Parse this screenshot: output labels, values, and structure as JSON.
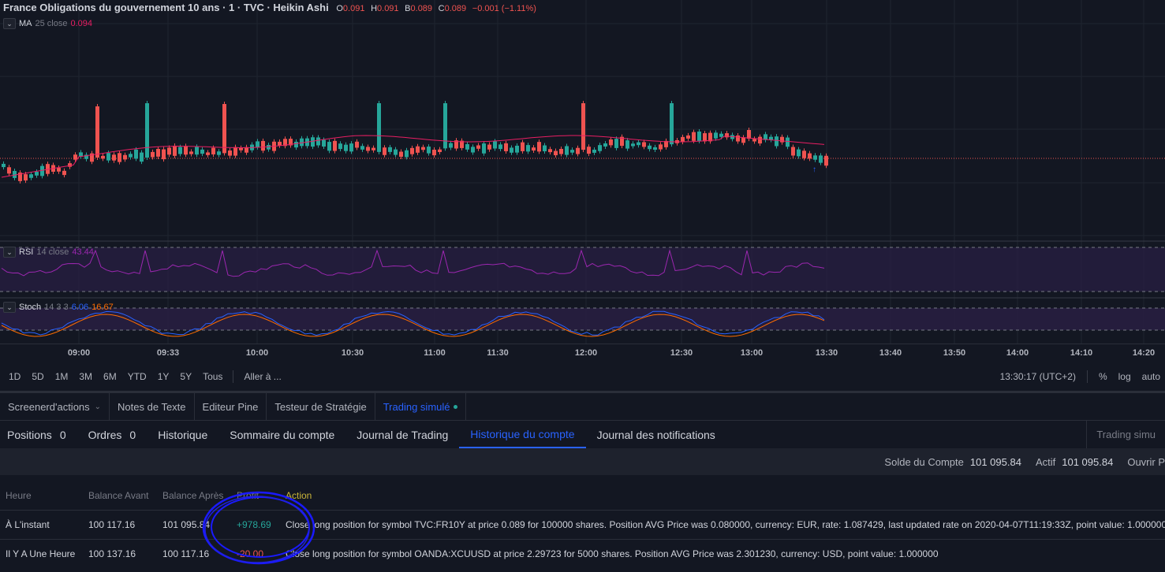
{
  "legend": {
    "title": "France Obligations du gouvernement 10 ans · 1 · TVC · Heikin Ashi",
    "o_label": "O",
    "o": "0.091",
    "h_label": "H",
    "h": "0.091",
    "b_label": "B",
    "b": "0.089",
    "c_label": "C",
    "c": "0.089",
    "change": "−0.001 (−1.11%)"
  },
  "indicators": {
    "ma": {
      "name": "MA",
      "params": "25 close",
      "value": "0.094"
    },
    "rsi": {
      "name": "RSI",
      "params": "14 close",
      "value": "43.44"
    },
    "stoch": {
      "name": "Stoch",
      "params": "14 3 3",
      "k": "6.06",
      "d": "16.67"
    }
  },
  "colors": {
    "up": "#26a69a",
    "down": "#ef5350",
    "ma": "#e91e63",
    "rsi": "#9c27b0",
    "stoch_k": "#2962ff",
    "stoch_d": "#ff6d00",
    "accent": "#2962ff"
  },
  "xaxis": [
    "09:00",
    "09:33",
    "10:00",
    "10:30",
    "11:00",
    "11:30",
    "12:00",
    "12:30",
    "13:00",
    "13:30",
    "13:40",
    "13:50",
    "14:00",
    "14:10",
    "14:20"
  ],
  "ranges": [
    "1D",
    "5D",
    "1M",
    "3M",
    "6M",
    "YTD",
    "1Y",
    "5Y",
    "Tous"
  ],
  "goto": "Aller à ...",
  "clock": "13:30:17 (UTC+2)",
  "scale": {
    "pct": "%",
    "log": "log",
    "auto": "auto"
  },
  "tabs": [
    "Screenerd'actions",
    "Notes de Texte",
    "Editeur Pine",
    "Testeur de Stratégie",
    "Trading simulé"
  ],
  "subtabs": [
    {
      "label": "Positions",
      "count": "0"
    },
    {
      "label": "Ordres",
      "count": "0"
    },
    {
      "label": "Historique",
      "count": ""
    },
    {
      "label": "Sommaire du compte",
      "count": ""
    },
    {
      "label": "Journal de Trading",
      "count": ""
    },
    {
      "label": "Historique du compte",
      "count": ""
    },
    {
      "label": "Journal des notifications",
      "count": ""
    }
  ],
  "subtab_right": "Trading simu",
  "summary": {
    "solde_label": "Solde du Compte",
    "solde": "101 095.84",
    "actif_label": "Actif",
    "actif": "101 095.84",
    "ouvrir": "Ouvrir P"
  },
  "table": {
    "headers": [
      "Heure",
      "Balance Avant",
      "Balance Après",
      "Profit",
      "Action"
    ],
    "rows": [
      {
        "time": "À L'instant",
        "before": "100 117.16",
        "after": "101 095.84",
        "profit": "+978.69",
        "action": "Close long position for symbol TVC:FR10Y at price 0.089 for 100000 shares. Position AVG Price was 0.080000, currency: EUR, rate: 1.087429, last updated rate on 2020-04-07T11:19:33Z, point value: 1.000000"
      },
      {
        "time": "Il Y A Une Heure",
        "before": "100 137.16",
        "after": "100 117.16",
        "profit": "-20.00",
        "action": "Close long position for symbol OANDA:XCUUSD at price 2.29723 for 5000 shares. Position AVG Price was 2.301230, currency: USD, point value: 1.000000"
      }
    ]
  }
}
